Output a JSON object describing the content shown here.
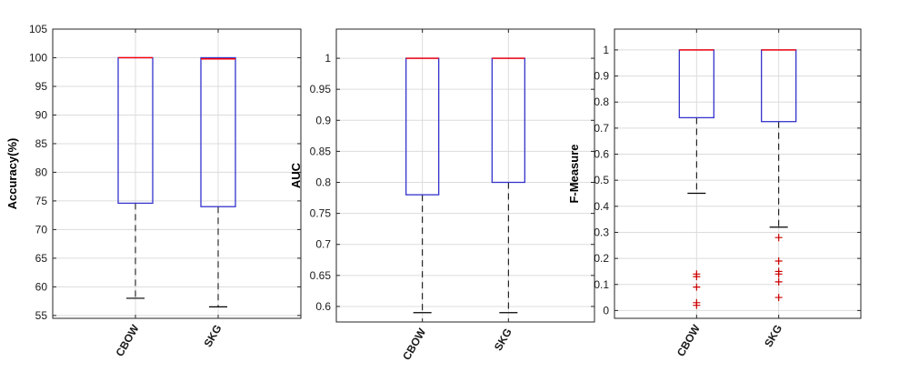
{
  "chart_data": [
    {
      "type": "box",
      "ylabel": "Accuracy(%)",
      "ylim": [
        54.5,
        105
      ],
      "yticks": [
        55,
        60,
        65,
        70,
        75,
        80,
        85,
        90,
        95,
        100,
        105
      ],
      "ytick_labels": [
        "55",
        "60",
        "65",
        "70",
        "75",
        "80",
        "85",
        "90",
        "95",
        "100",
        "105"
      ],
      "categories": [
        "CBOW",
        "SKG"
      ],
      "boxes": [
        {
          "label": "CBOW",
          "whisker_low": 58,
          "q1": 74.6,
          "median": 100,
          "q3": 100,
          "whisker_high": 100,
          "outliers": []
        },
        {
          "label": "SKG",
          "whisker_low": 56.5,
          "q1": 74,
          "median": 99.8,
          "q3": 100,
          "whisker_high": 100,
          "outliers": []
        }
      ],
      "grid": true
    },
    {
      "type": "box",
      "ylabel": "AUC",
      "ylim": [
        0.575,
        1.047
      ],
      "yticks": [
        0.6,
        0.65,
        0.7,
        0.75,
        0.8,
        0.85,
        0.9,
        0.95,
        1
      ],
      "ytick_labels": [
        "0.6",
        "0.65",
        "0.7",
        "0.75",
        "0.8",
        "0.85",
        "0.9",
        "0.95",
        "1"
      ],
      "categories": [
        "CBOW",
        "SKG"
      ],
      "boxes": [
        {
          "label": "CBOW",
          "whisker_low": 0.59,
          "q1": 0.78,
          "median": 1,
          "q3": 1,
          "whisker_high": 1,
          "outliers": []
        },
        {
          "label": "SKG",
          "whisker_low": 0.59,
          "q1": 0.8,
          "median": 1,
          "q3": 1,
          "whisker_high": 1,
          "outliers": []
        }
      ],
      "grid": true
    },
    {
      "type": "box",
      "ylabel": "F-Measure",
      "ylim": [
        -0.03,
        1.08
      ],
      "yticks": [
        0,
        0.1,
        0.2,
        0.3,
        0.4,
        0.5,
        0.6,
        0.7,
        0.8,
        0.9,
        1
      ],
      "ytick_labels": [
        "0",
        "0.1",
        "0.2",
        "0.3",
        "0.4",
        "0.5",
        "0.6",
        "0.7",
        "0.8",
        "0.9",
        "1"
      ],
      "categories": [
        "CBOW",
        "SKG"
      ],
      "boxes": [
        {
          "label": "CBOW",
          "whisker_low": 0.45,
          "q1": 0.74,
          "median": 1,
          "q3": 1,
          "whisker_high": 1,
          "outliers": [
            0.14,
            0.13,
            0.09,
            0.03,
            0.02
          ]
        },
        {
          "label": "SKG",
          "whisker_low": 0.32,
          "q1": 0.725,
          "median": 1,
          "q3": 1,
          "whisker_high": 1,
          "outliers": [
            0.28,
            0.19,
            0.15,
            0.14,
            0.11,
            0.05
          ]
        }
      ],
      "grid": true
    }
  ],
  "colors": {
    "box": "#3333cc",
    "median": "#ff0000",
    "whisker": "#000000",
    "outlier": "#cc0000",
    "grid": "#dcdcdc",
    "axis": "#262626"
  }
}
